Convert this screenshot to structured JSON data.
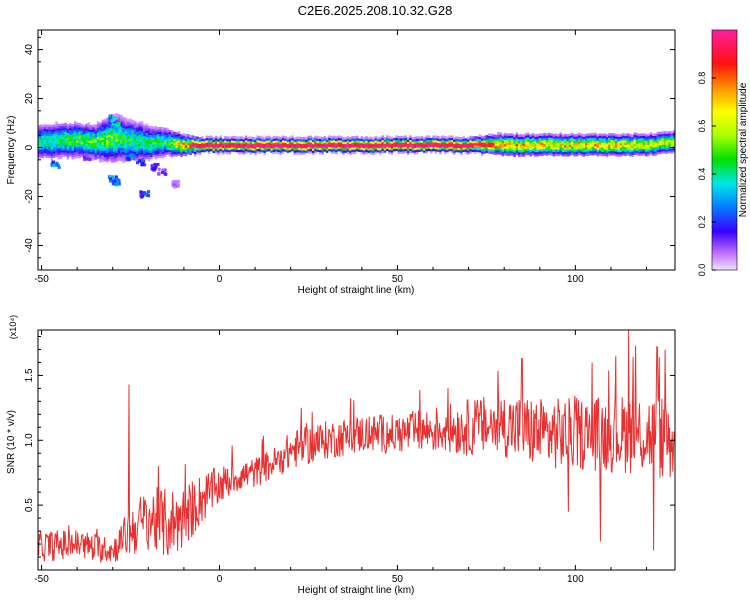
{
  "title": "C2E6.2025.208.10.32.G28",
  "colors": {
    "snr_line": "#e83030",
    "ridge_core": "#e0204a",
    "frame": "#000000"
  },
  "chart_data": [
    {
      "id": "spectrogram",
      "type": "heatmap",
      "xlabel": "Height of straight line (km)",
      "ylabel": "Frequency (Hz)",
      "xlim": [
        -51,
        128
      ],
      "ylim": [
        -50,
        48
      ],
      "x_ticks": [
        -50,
        0,
        50,
        100
      ],
      "y_ticks": [
        -40,
        -20,
        0,
        20,
        40
      ],
      "x_tick_labels": [
        "-50",
        "0",
        "50",
        "100"
      ],
      "y_tick_labels": [
        "-40",
        "-20",
        "0",
        "20",
        "40"
      ],
      "ridge": {
        "description_points_x": [
          -51,
          -45,
          -40,
          -35,
          -30,
          -25,
          -20,
          -15,
          -10,
          -5,
          0,
          10,
          20,
          30,
          40,
          50,
          60,
          70,
          80,
          90,
          100,
          110,
          120,
          128
        ],
        "center_freq_hz": [
          2,
          3,
          3,
          2,
          4,
          3,
          2,
          2,
          1,
          1,
          1,
          1,
          1,
          1,
          1,
          1,
          1,
          1,
          1,
          1,
          1,
          1,
          1,
          2
        ],
        "half_width_hz": [
          5,
          5,
          5,
          5,
          7,
          6,
          5,
          4,
          3,
          2,
          2,
          2,
          2,
          2,
          2,
          2,
          2,
          2,
          3,
          3,
          3,
          3,
          3,
          3
        ],
        "peak_amplitude": [
          0.4,
          0.45,
          0.5,
          0.5,
          0.5,
          0.45,
          0.45,
          0.45,
          0.75,
          0.9,
          0.9,
          0.95,
          0.95,
          0.95,
          0.95,
          0.9,
          0.9,
          0.85,
          0.75,
          0.7,
          0.7,
          0.7,
          0.65,
          0.6
        ]
      },
      "blobs": [
        {
          "x": -46,
          "y": -7,
          "a": 0.28
        },
        {
          "x": -30,
          "y": -13,
          "a": 0.3
        },
        {
          "x": -29,
          "y": -14,
          "a": 0.28
        },
        {
          "x": -30,
          "y": 12,
          "a": 0.35
        },
        {
          "x": -29,
          "y": 9,
          "a": 0.4
        },
        {
          "x": -21,
          "y": -19,
          "a": 0.22
        },
        {
          "x": -25,
          "y": -4,
          "a": 0.25
        },
        {
          "x": -22,
          "y": -6,
          "a": 0.22
        },
        {
          "x": -18,
          "y": -8,
          "a": 0.18
        },
        {
          "x": -16,
          "y": -10,
          "a": 0.12
        },
        {
          "x": -12,
          "y": -15,
          "a": 0.08
        },
        {
          "x": -37,
          "y": -4,
          "a": 0.12
        }
      ],
      "colorbar": {
        "label": "Normalized spectral amplitude",
        "range": [
          0,
          1
        ],
        "ticks": [
          0.0,
          0.2,
          0.4,
          0.6,
          0.8
        ],
        "tick_labels": [
          "0.0",
          "0.2",
          "0.4",
          "0.6",
          "0.8"
        ]
      }
    },
    {
      "id": "snr",
      "type": "line",
      "xlabel": "Height of straight line (km)",
      "ylabel": "SNR (10 * v/v)",
      "y_exponent_label": "(x10⁴)",
      "xlim": [
        -51,
        128
      ],
      "ylim": [
        0.0,
        1.85
      ],
      "x_ticks": [
        -50,
        0,
        50,
        100
      ],
      "y_ticks": [
        0.5,
        1.0,
        1.5
      ],
      "x_tick_labels": [
        "-50",
        "0",
        "50",
        "100"
      ],
      "y_tick_labels": [
        "0.5",
        "1.0",
        "1.5"
      ],
      "trend_x": [
        -51,
        -40,
        -30,
        -25,
        -20,
        -15,
        -10,
        -5,
        0,
        5,
        10,
        15,
        20,
        30,
        40,
        50,
        60,
        70,
        80,
        90,
        100,
        110,
        120,
        128
      ],
      "trend_y": [
        0.18,
        0.2,
        0.15,
        0.3,
        0.4,
        0.35,
        0.4,
        0.55,
        0.65,
        0.72,
        0.75,
        0.82,
        0.92,
        1.0,
        1.05,
        1.05,
        1.08,
        1.1,
        1.12,
        1.05,
        1.05,
        1.05,
        1.05,
        1.0
      ],
      "noise_y": [
        0.12,
        0.12,
        0.1,
        0.2,
        0.25,
        0.28,
        0.25,
        0.2,
        0.15,
        0.12,
        0.12,
        0.12,
        0.15,
        0.15,
        0.15,
        0.15,
        0.18,
        0.22,
        0.25,
        0.28,
        0.28,
        0.3,
        0.32,
        0.35
      ],
      "spikes": [
        {
          "x": -25.5,
          "y": 1.43
        },
        {
          "x": 23,
          "y": 1.25
        },
        {
          "x": 85,
          "y": 1.63
        },
        {
          "x": 115,
          "y": 1.85
        },
        {
          "x": 117,
          "y": 1.73
        },
        {
          "x": 123,
          "y": 1.72
        },
        {
          "x": 122,
          "y": 0.15
        },
        {
          "x": 107,
          "y": 0.22
        },
        {
          "x": 98,
          "y": 0.45
        }
      ]
    }
  ]
}
